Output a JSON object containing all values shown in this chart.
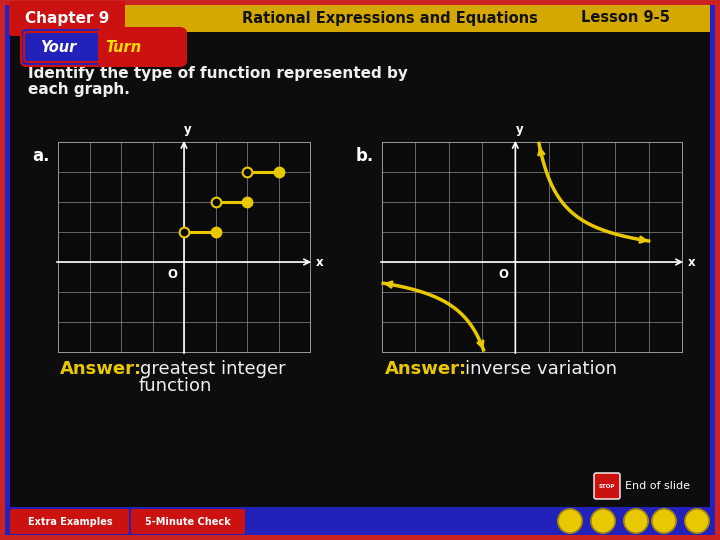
{
  "bg_color": "#0d0d0d",
  "header_bg": "#d4a800",
  "header_text": "Chapter 9",
  "header_subtitle": "Rational Expressions and Equations",
  "header_lesson": "Lesson 9-5",
  "question_color": "#f0f0f0",
  "answer_color": "#f0f0f0",
  "answer_bold_color": "#e8c800",
  "grid_color": "#aaaaaa",
  "step_color": "#e8c800",
  "inv_color": "#e8c800",
  "border_outer": "#cc2222",
  "border_inner": "#2222cc",
  "header_ch9_red": "#cc1111",
  "your_turn_blue": "#2222bb",
  "your_turn_red": "#cc1111",
  "footer_blue": "#2222bb",
  "footer_red": "#cc1111",
  "nav_gold": "#e8c800",
  "white": "#ffffff"
}
